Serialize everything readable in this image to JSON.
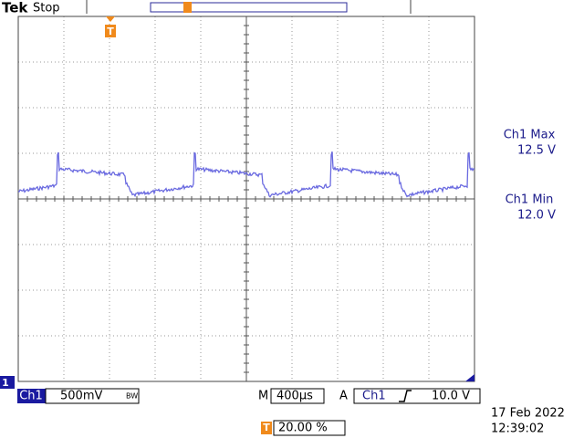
{
  "header": {
    "brand": "Tek",
    "status": "Stop"
  },
  "measurements": [
    {
      "label": "Ch1 Max",
      "value": "12.5 V"
    },
    {
      "label": "Ch1 Min",
      "value": "12.0 V"
    }
  ],
  "channel_marker": "1",
  "trigger_marker": "T",
  "status_bar": {
    "channel": "Ch1",
    "scale": "500mV",
    "bandwidth": "BW",
    "time_label": "M",
    "time_scale": "400µs",
    "trigger_mode": "A",
    "trigger_source": "Ch1",
    "trigger_level": "10.0 V"
  },
  "trigger_position": "20.00 %",
  "timestamp": {
    "date": "17 Feb  2022",
    "time": "12:39:02"
  }
}
